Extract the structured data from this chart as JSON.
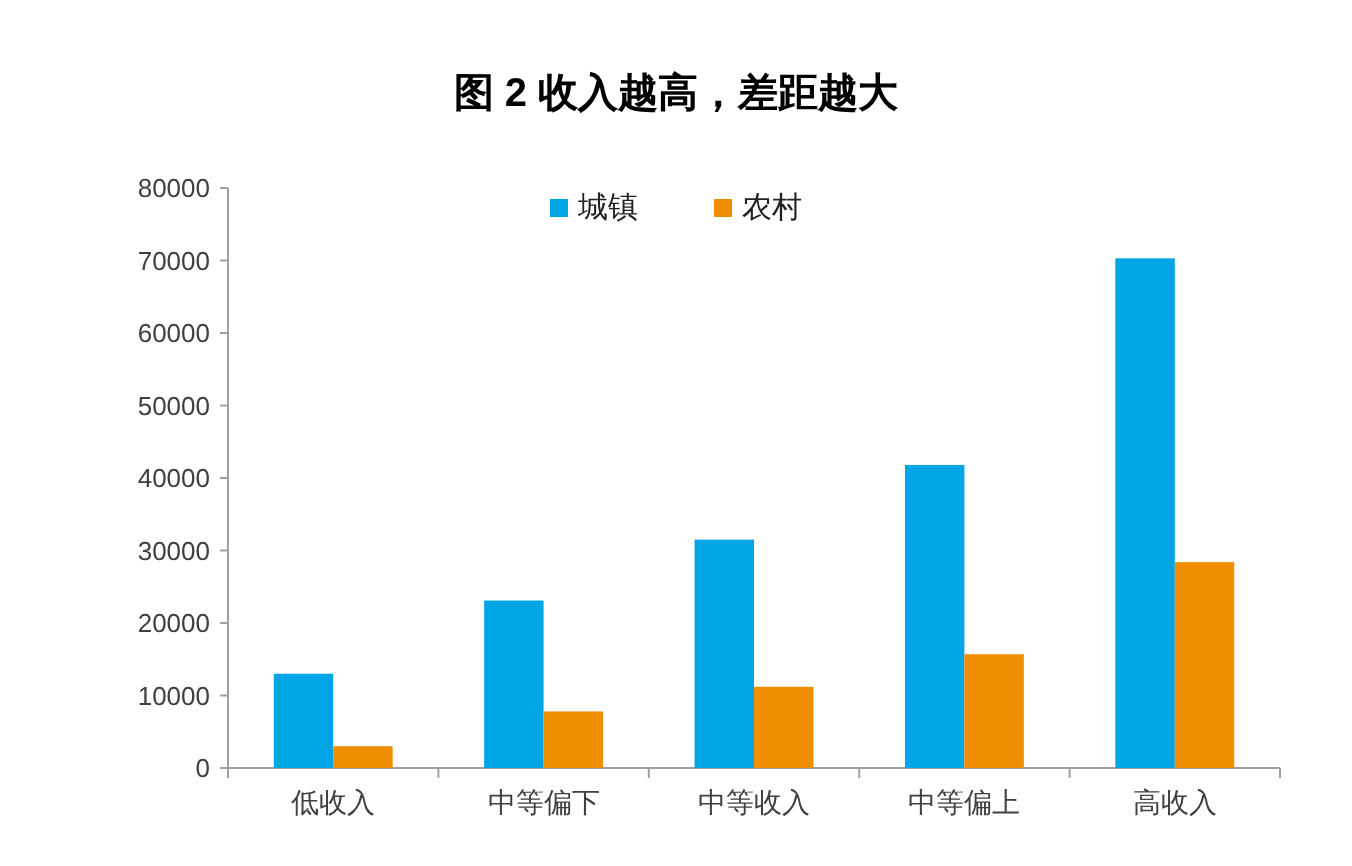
{
  "chart_data": {
    "type": "bar",
    "title": "图 2 收入越高，差距越大",
    "categories": [
      "低收入",
      "中等偏下",
      "中等收入",
      "中等偏上",
      "高收入"
    ],
    "series": [
      {
        "name": "城镇",
        "color": "#00a5e6",
        "values": [
          13000,
          23100,
          31500,
          41800,
          70300
        ]
      },
      {
        "name": "农村",
        "color": "#ef8e00",
        "values": [
          3000,
          7800,
          11200,
          15700,
          28400
        ]
      }
    ],
    "ylim": [
      0,
      80000
    ],
    "yticks": [
      0,
      10000,
      20000,
      30000,
      40000,
      50000,
      60000,
      70000,
      80000
    ],
    "legend": "top"
  }
}
